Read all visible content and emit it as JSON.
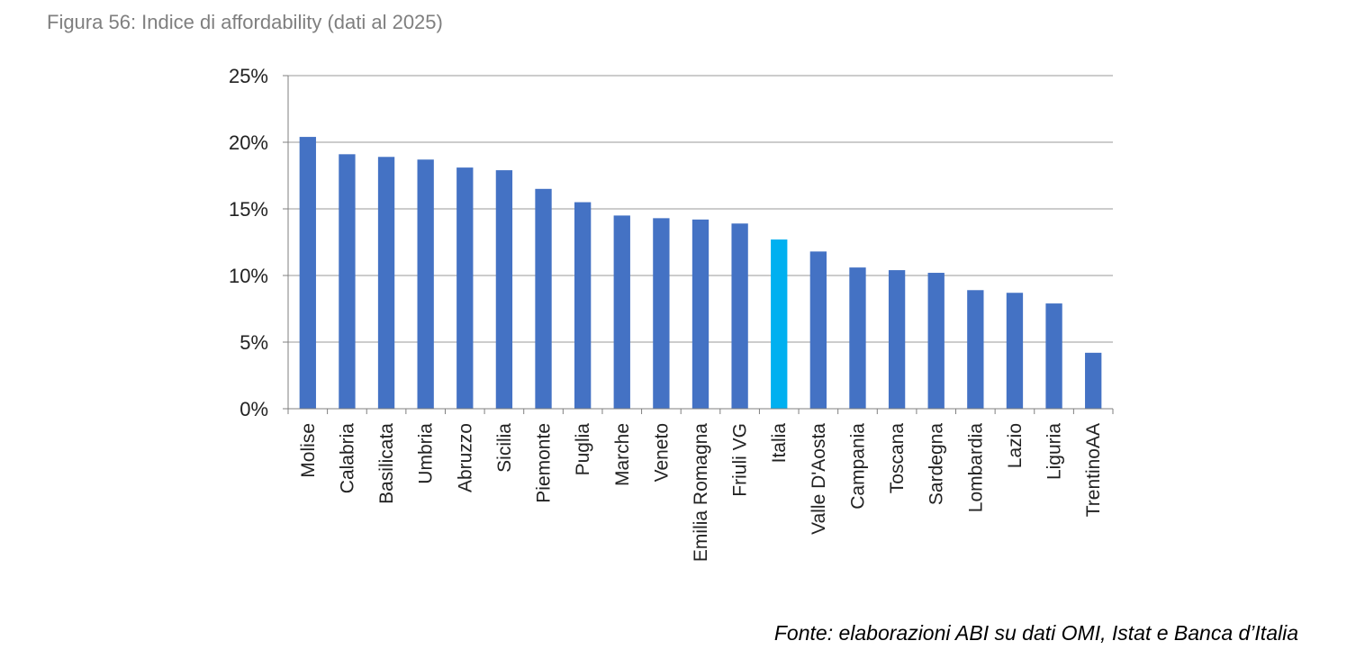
{
  "figure": {
    "title": "Figura 56: Indice di affordability (dati al 2025)",
    "source": "Fonte: elaborazioni ABI su dati OMI, Istat e Banca d’Italia"
  },
  "chart_data": {
    "type": "bar",
    "title": "",
    "xlabel": "",
    "ylabel": "",
    "ylim": [
      0,
      25
    ],
    "y_ticks": [
      0,
      5,
      10,
      15,
      20,
      25
    ],
    "y_tick_labels": [
      "0%",
      "5%",
      "10%",
      "15%",
      "20%",
      "25%"
    ],
    "grid": true,
    "legend": "none",
    "categories": [
      "Molise",
      "Calabria",
      "Basilicata",
      "Umbria",
      "Abruzzo",
      "Sicilia",
      "Piemonte",
      "Puglia",
      "Marche",
      "Veneto",
      "Emilia Romagna",
      "Friuli VG",
      "Italia",
      "Valle D'Aosta",
      "Campania",
      "Toscana",
      "Sardegna",
      "Lombardia",
      "Lazio",
      "Liguria",
      "TrentinoAA"
    ],
    "values": [
      20.4,
      19.1,
      18.9,
      18.7,
      18.1,
      17.9,
      16.5,
      15.5,
      14.5,
      14.3,
      14.2,
      13.9,
      12.7,
      11.8,
      10.6,
      10.4,
      10.2,
      8.9,
      8.7,
      7.9,
      4.2
    ],
    "colors": {
      "default": "#4472c4",
      "highlight": "#00b0f0",
      "highlight_category": "Italia",
      "grid": "#9a9a9a",
      "axis": "#7f7f7f"
    }
  }
}
